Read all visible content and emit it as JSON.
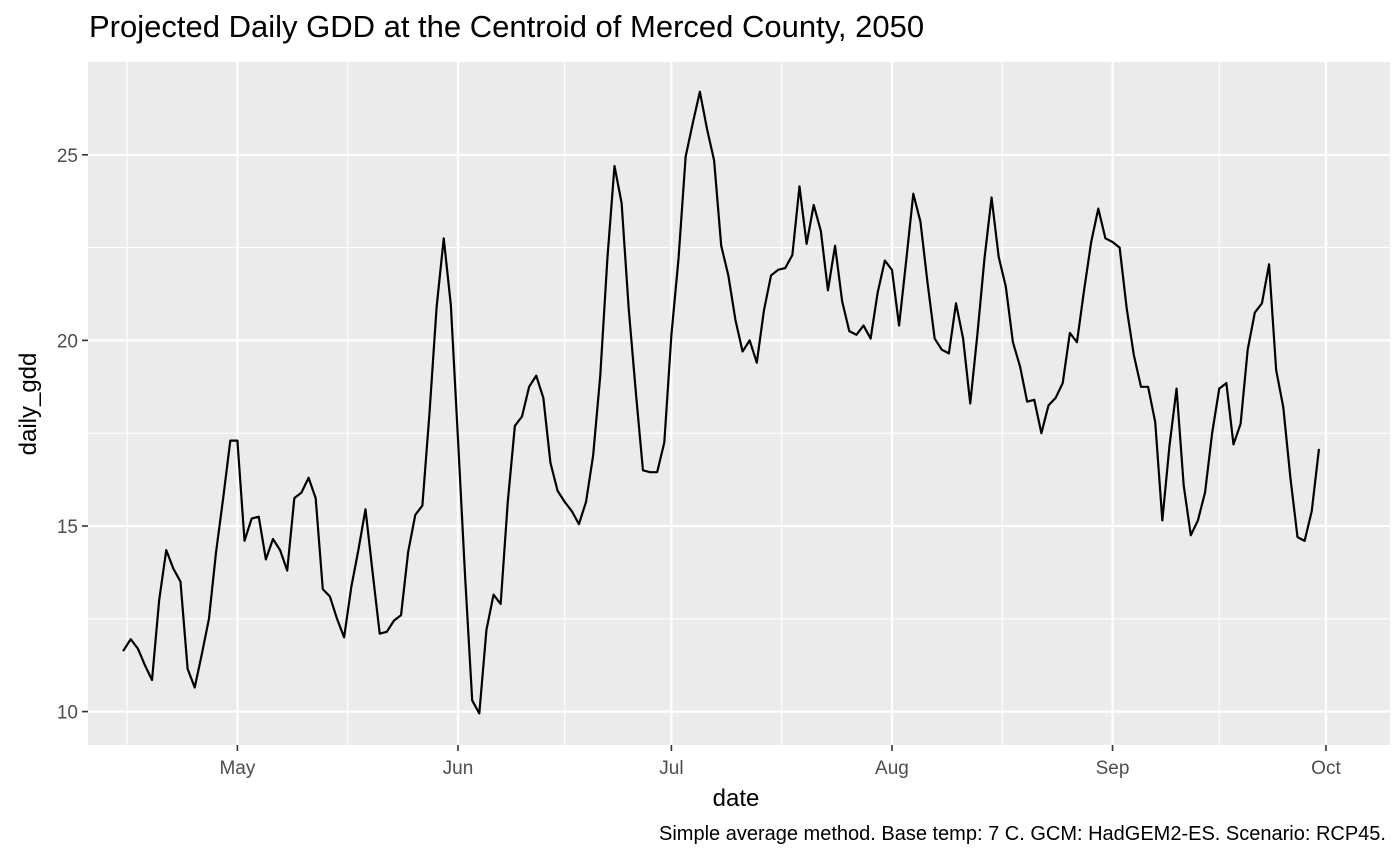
{
  "chart_data": {
    "type": "line",
    "title": "Projected Daily GDD at the Centroid of Merced County, 2050",
    "caption": "Simple average method. Base temp: 7 C. GCM: HadGEM2-ES. Scenario: RCP45.",
    "xlabel": "date",
    "ylabel": "daily_gdd",
    "x_tick_labels": [
      "May",
      "Jun",
      "Jul",
      "Aug",
      "Sep",
      "Oct"
    ],
    "x_tick_dates": [
      "2050-05-01",
      "2050-06-01",
      "2050-07-01",
      "2050-08-01",
      "2050-09-01",
      "2050-10-01"
    ],
    "y_ticks": [
      10,
      15,
      20,
      25
    ],
    "xlim": [
      "2050-04-10",
      "2050-10-10"
    ],
    "ylim": [
      9.1,
      27.5
    ],
    "grid": true,
    "series": [
      {
        "color": "#000000",
        "x_start": "2050-04-15",
        "x_end": "2050-09-30",
        "values": [
          11.65,
          11.95,
          11.7,
          11.25,
          10.85,
          13.0,
          14.35,
          13.85,
          13.5,
          11.15,
          10.65,
          11.55,
          12.5,
          14.3,
          15.75,
          17.3,
          17.3,
          14.6,
          15.2,
          15.25,
          14.1,
          14.65,
          14.35,
          13.8,
          15.75,
          15.9,
          16.3,
          15.75,
          13.3,
          13.1,
          12.5,
          12.0,
          13.35,
          14.35,
          15.45,
          13.75,
          12.1,
          12.15,
          12.45,
          12.6,
          14.3,
          15.3,
          15.55,
          18.05,
          20.9,
          22.75,
          20.95,
          17.35,
          13.65,
          10.3,
          9.95,
          12.2,
          13.15,
          12.9,
          15.65,
          17.7,
          17.95,
          18.75,
          19.05,
          18.45,
          16.7,
          15.95,
          15.65,
          15.4,
          15.05,
          15.65,
          16.9,
          19.05,
          22.2,
          24.7,
          23.7,
          20.85,
          18.6,
          16.5,
          16.45,
          16.45,
          17.25,
          20.15,
          22.2,
          24.95,
          25.85,
          26.7,
          25.7,
          24.85,
          22.55,
          21.75,
          20.55,
          19.7,
          20.0,
          19.4,
          20.8,
          21.75,
          21.9,
          21.95,
          22.3,
          24.15,
          22.6,
          23.65,
          22.95,
          21.35,
          22.55,
          21.05,
          20.25,
          20.15,
          20.4,
          20.05,
          21.3,
          22.15,
          21.9,
          20.4,
          22.15,
          23.95,
          23.2,
          21.55,
          20.05,
          19.75,
          19.65,
          21.0,
          20.05,
          18.3,
          20.15,
          22.2,
          23.85,
          22.25,
          21.45,
          19.95,
          19.3,
          18.35,
          18.4,
          17.5,
          18.25,
          18.45,
          18.85,
          20.2,
          19.95,
          21.35,
          22.65,
          23.55,
          22.75,
          22.65,
          22.5,
          20.85,
          19.6,
          18.75,
          18.75,
          17.8,
          15.15,
          17.15,
          18.7,
          16.1,
          14.75,
          15.15,
          15.9,
          17.5,
          18.7,
          18.85,
          17.2,
          17.75,
          19.75,
          20.75,
          21.0,
          22.05,
          19.2,
          18.2,
          16.3,
          14.7,
          14.6,
          15.4,
          17.05
        ]
      }
    ]
  }
}
